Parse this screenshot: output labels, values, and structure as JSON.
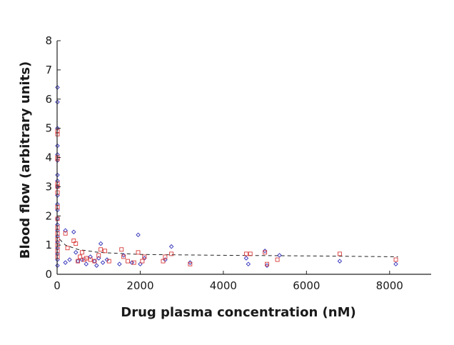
{
  "chart_data": {
    "type": "scatter",
    "title": "",
    "xlabel": "Drug plasma concentration (nM)",
    "ylabel": "Blood flow (arbitrary units)",
    "xlim": [
      0,
      9000
    ],
    "ylim": [
      0,
      8
    ],
    "xticks": [
      0,
      2000,
      4000,
      6000,
      8000
    ],
    "yticks": [
      0,
      1,
      2,
      3,
      4,
      5,
      6,
      7,
      8
    ],
    "grid": false,
    "legend": "none",
    "series": [
      {
        "marker": "diamond",
        "color": "#2b2bb8",
        "points": [
          [
            0,
            6.4
          ],
          [
            0,
            5.9
          ],
          [
            0,
            5.0
          ],
          [
            0,
            4.4
          ],
          [
            0,
            4.1
          ],
          [
            0,
            3.9
          ],
          [
            0,
            3.4
          ],
          [
            0,
            3.2
          ],
          [
            0,
            3.0
          ],
          [
            0,
            2.7
          ],
          [
            0,
            2.4
          ],
          [
            0,
            2.2
          ],
          [
            0,
            1.9
          ],
          [
            0,
            1.7
          ],
          [
            0,
            1.5
          ],
          [
            0,
            1.3
          ],
          [
            0,
            1.1
          ],
          [
            0,
            0.9
          ],
          [
            0,
            0.7
          ],
          [
            0,
            0.5
          ],
          [
            0,
            0.3
          ],
          [
            200,
            1.5
          ],
          [
            200,
            0.4
          ],
          [
            300,
            0.5
          ],
          [
            400,
            1.45
          ],
          [
            450,
            0.75
          ],
          [
            500,
            0.45
          ],
          [
            600,
            0.5
          ],
          [
            700,
            0.35
          ],
          [
            800,
            0.6
          ],
          [
            900,
            0.45
          ],
          [
            950,
            0.3
          ],
          [
            1000,
            0.55
          ],
          [
            1050,
            1.05
          ],
          [
            1100,
            0.4
          ],
          [
            1200,
            0.5
          ],
          [
            1500,
            0.35
          ],
          [
            1600,
            0.65
          ],
          [
            1800,
            0.4
          ],
          [
            1950,
            1.35
          ],
          [
            2000,
            0.35
          ],
          [
            2100,
            0.55
          ],
          [
            2600,
            0.5
          ],
          [
            2750,
            0.95
          ],
          [
            3200,
            0.4
          ],
          [
            4550,
            0.55
          ],
          [
            4600,
            0.35
          ],
          [
            5000,
            0.8
          ],
          [
            5050,
            0.3
          ],
          [
            5350,
            0.65
          ],
          [
            6800,
            0.45
          ],
          [
            8150,
            0.35
          ]
        ]
      },
      {
        "marker": "square",
        "color": "#d93a3a",
        "points": [
          [
            0,
            4.9
          ],
          [
            0,
            4.8
          ],
          [
            0,
            4.0
          ],
          [
            0,
            3.95
          ],
          [
            0,
            3.1
          ],
          [
            0,
            3.0
          ],
          [
            0,
            2.8
          ],
          [
            0,
            2.3
          ],
          [
            0,
            1.9
          ],
          [
            0,
            1.6
          ],
          [
            0,
            1.4
          ],
          [
            0,
            1.2
          ],
          [
            0,
            1.0
          ],
          [
            0,
            0.8
          ],
          [
            0,
            0.6
          ],
          [
            200,
            1.4
          ],
          [
            250,
            0.9
          ],
          [
            400,
            1.15
          ],
          [
            450,
            1.05
          ],
          [
            500,
            0.45
          ],
          [
            550,
            0.6
          ],
          [
            600,
            0.75
          ],
          [
            650,
            0.5
          ],
          [
            700,
            0.55
          ],
          [
            800,
            0.5
          ],
          [
            900,
            0.45
          ],
          [
            1000,
            0.65
          ],
          [
            1050,
            0.85
          ],
          [
            1150,
            0.8
          ],
          [
            1250,
            0.45
          ],
          [
            1550,
            0.85
          ],
          [
            1600,
            0.6
          ],
          [
            1700,
            0.45
          ],
          [
            1850,
            0.4
          ],
          [
            1950,
            0.75
          ],
          [
            2050,
            0.45
          ],
          [
            2100,
            0.6
          ],
          [
            2550,
            0.45
          ],
          [
            2600,
            0.6
          ],
          [
            2750,
            0.7
          ],
          [
            3200,
            0.35
          ],
          [
            4550,
            0.7
          ],
          [
            4650,
            0.7
          ],
          [
            5000,
            0.75
          ],
          [
            5050,
            0.35
          ],
          [
            5300,
            0.5
          ],
          [
            6800,
            0.7
          ],
          [
            8150,
            0.5
          ]
        ]
      }
    ],
    "trend_line": {
      "style": "dashed",
      "color": "#222222",
      "points": [
        [
          60,
          1.2
        ],
        [
          200,
          1.0
        ],
        [
          500,
          0.85
        ],
        [
          1000,
          0.75
        ],
        [
          2000,
          0.68
        ],
        [
          4000,
          0.65
        ],
        [
          6000,
          0.63
        ],
        [
          8200,
          0.6
        ]
      ]
    }
  }
}
